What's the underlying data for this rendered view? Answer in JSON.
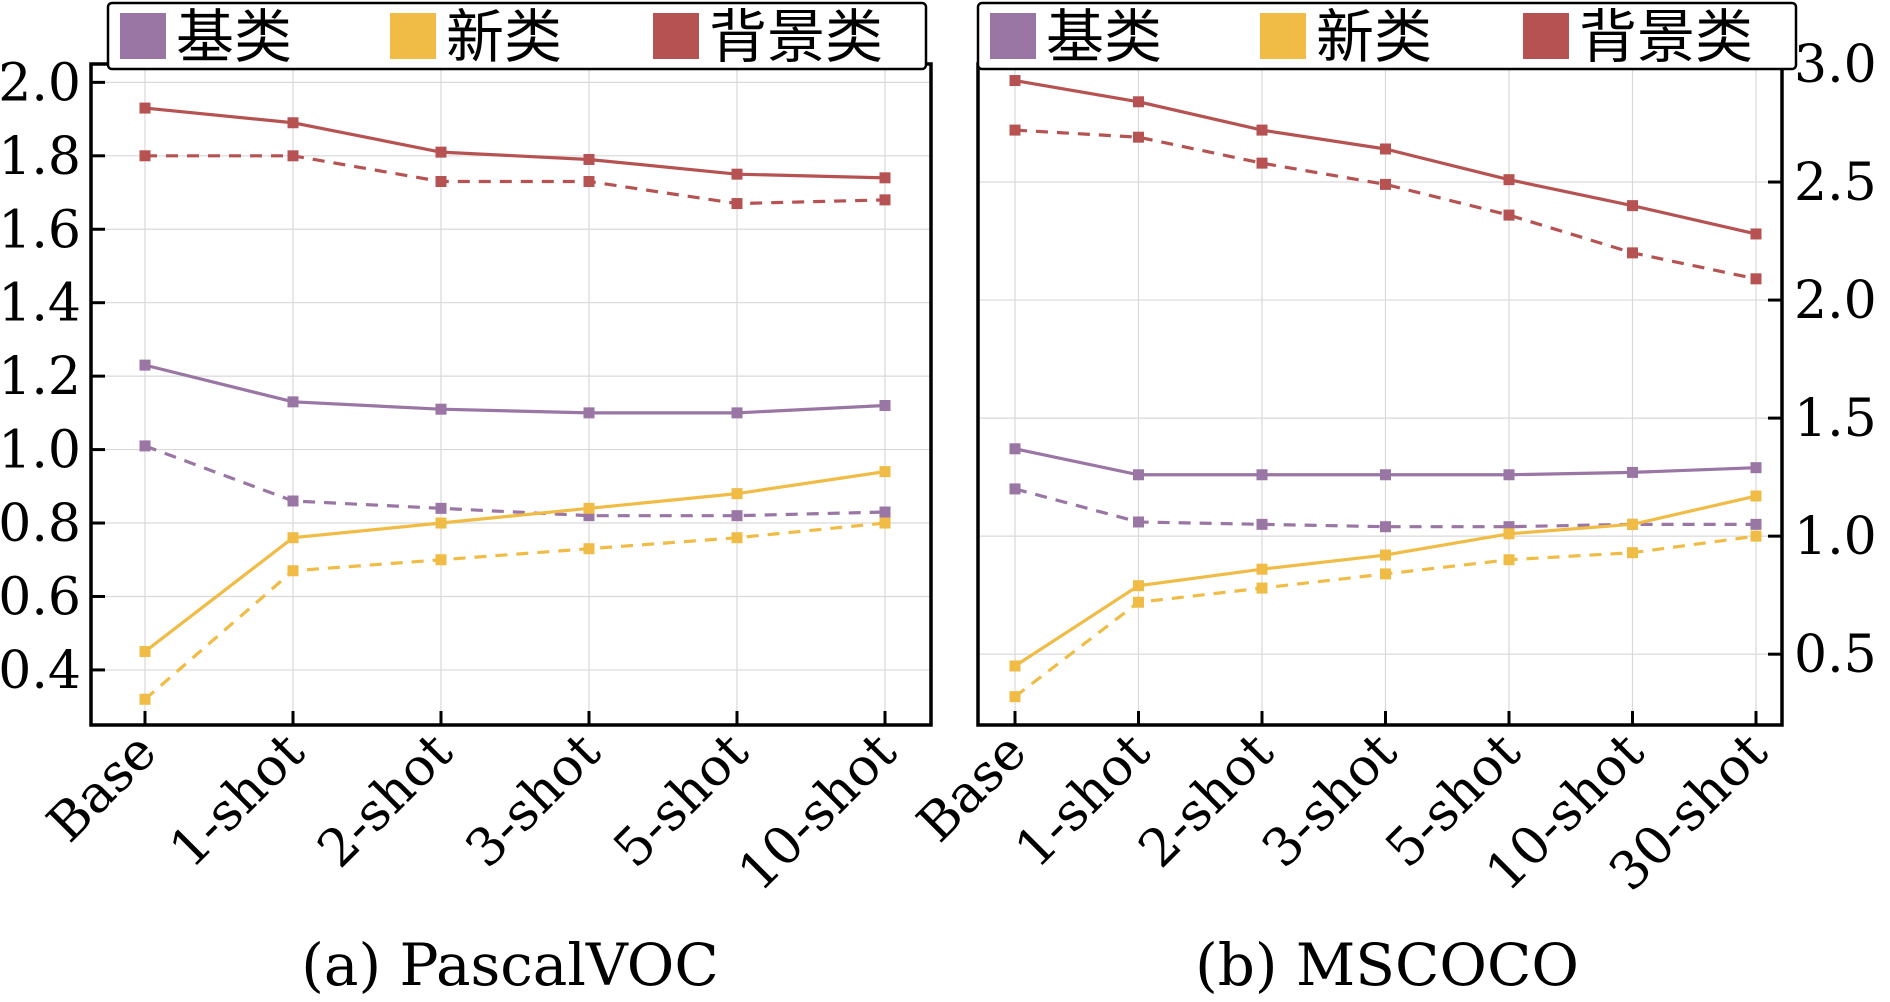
{
  "colors": {
    "base": "#9a76a4",
    "novel": "#f0bc46",
    "background": "#b65352"
  },
  "chart_data": [
    {
      "type": "line",
      "caption": "(a) PascalVOC",
      "categories": [
        "Base",
        "1-shot",
        "2-shot",
        "3-shot",
        "5-shot",
        "10-shot"
      ],
      "y_axis_side": "left",
      "ylim": [
        0.25,
        2.05
      ],
      "yticks": [
        "0.4",
        "0.6",
        "0.8",
        "1.0",
        "1.2",
        "1.4",
        "1.6",
        "1.8",
        "2.0"
      ],
      "grid": true,
      "legend": {
        "placement": "top",
        "entries": [
          {
            "label": "基类",
            "color_key": "base"
          },
          {
            "label": "新类",
            "color_key": "novel"
          },
          {
            "label": "背景类",
            "color_key": "background"
          }
        ]
      },
      "series": [
        {
          "group": "background",
          "style": "solid",
          "values": [
            1.93,
            1.89,
            1.81,
            1.79,
            1.75,
            1.74
          ]
        },
        {
          "group": "background",
          "style": "dashed",
          "values": [
            1.8,
            1.8,
            1.73,
            1.73,
            1.67,
            1.68
          ]
        },
        {
          "group": "base",
          "style": "solid",
          "values": [
            1.23,
            1.13,
            1.11,
            1.1,
            1.1,
            1.12
          ]
        },
        {
          "group": "base",
          "style": "dashed",
          "values": [
            1.01,
            0.86,
            0.84,
            0.82,
            0.82,
            0.83
          ]
        },
        {
          "group": "novel",
          "style": "solid",
          "values": [
            0.45,
            0.76,
            0.8,
            0.84,
            0.88,
            0.94
          ]
        },
        {
          "group": "novel",
          "style": "dashed",
          "values": [
            0.32,
            0.67,
            0.7,
            0.73,
            0.76,
            0.8
          ]
        }
      ]
    },
    {
      "type": "line",
      "caption": "(b) MSCOCO",
      "categories": [
        "Base",
        "1-shot",
        "2-shot",
        "3-shot",
        "5-shot",
        "10-shot",
        "30-shot"
      ],
      "y_axis_side": "right",
      "ylim": [
        0.2,
        3.0
      ],
      "yticks": [
        "0.5",
        "1.0",
        "1.5",
        "2.0",
        "2.5",
        "3.0"
      ],
      "grid": true,
      "legend": {
        "placement": "top",
        "entries": [
          {
            "label": "基类",
            "color_key": "base"
          },
          {
            "label": "新类",
            "color_key": "novel"
          },
          {
            "label": "背景类",
            "color_key": "background"
          }
        ]
      },
      "series": [
        {
          "group": "background",
          "style": "solid",
          "values": [
            2.93,
            2.84,
            2.72,
            2.64,
            2.51,
            2.4,
            2.28
          ]
        },
        {
          "group": "background",
          "style": "dashed",
          "values": [
            2.72,
            2.69,
            2.58,
            2.49,
            2.36,
            2.2,
            2.09
          ]
        },
        {
          "group": "base",
          "style": "solid",
          "values": [
            1.37,
            1.26,
            1.26,
            1.26,
            1.26,
            1.27,
            1.29
          ]
        },
        {
          "group": "base",
          "style": "dashed",
          "values": [
            1.2,
            1.06,
            1.05,
            1.04,
            1.04,
            1.05,
            1.05
          ]
        },
        {
          "group": "novel",
          "style": "solid",
          "values": [
            0.45,
            0.79,
            0.86,
            0.92,
            1.01,
            1.05,
            1.17
          ]
        },
        {
          "group": "novel",
          "style": "dashed",
          "values": [
            0.32,
            0.72,
            0.78,
            0.84,
            0.9,
            0.93,
            1.0
          ]
        }
      ]
    }
  ]
}
